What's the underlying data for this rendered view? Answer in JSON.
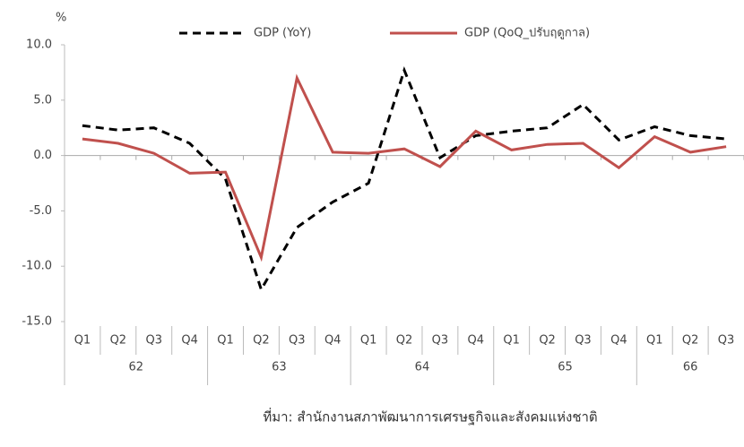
{
  "chart_data": {
    "type": "line",
    "y_unit": "%",
    "groups": [
      {
        "label": "62",
        "categories": [
          "Q1",
          "Q2",
          "Q3",
          "Q4"
        ]
      },
      {
        "label": "63",
        "categories": [
          "Q1",
          "Q2",
          "Q3",
          "Q4"
        ]
      },
      {
        "label": "64",
        "categories": [
          "Q1",
          "Q2",
          "Q3",
          "Q4"
        ]
      },
      {
        "label": "65",
        "categories": [
          "Q1",
          "Q2",
          "Q3",
          "Q4"
        ]
      },
      {
        "label": "66",
        "categories": [
          "Q1",
          "Q2",
          "Q3"
        ]
      }
    ],
    "series": [
      {
        "name": "GDP (YoY)",
        "color": "#000000",
        "style": "dashed",
        "values": [
          2.7,
          2.3,
          2.5,
          1.1,
          -2.1,
          -12.1,
          -6.5,
          -4.2,
          -2.5,
          7.7,
          -0.2,
          1.8,
          2.2,
          2.5,
          4.6,
          1.4,
          2.6,
          1.8,
          1.5
        ]
      },
      {
        "name": "GDP (QoQ_ปรับฤดูกาล)",
        "color": "#c0504d",
        "style": "solid",
        "values": [
          1.5,
          1.1,
          0.2,
          -1.6,
          -1.5,
          -9.2,
          7.0,
          0.3,
          0.2,
          0.6,
          -1.0,
          2.2,
          0.5,
          1.0,
          1.1,
          -1.1,
          1.7,
          0.3,
          0.8
        ]
      }
    ],
    "ylim": [
      -15,
      10
    ],
    "yticks": [
      {
        "value": -15,
        "label": "-15.0"
      },
      {
        "value": -10,
        "label": "-10.0"
      },
      {
        "value": -5,
        "label": "-5.0"
      },
      {
        "value": 0,
        "label": "0.0"
      },
      {
        "value": 5,
        "label": "5.0"
      },
      {
        "value": 10,
        "label": "10.0"
      }
    ],
    "source": "ที่มา: สำนักงานสภาพัฒนาการเศรษฐกิจและสังคมแห่งชาติ"
  }
}
